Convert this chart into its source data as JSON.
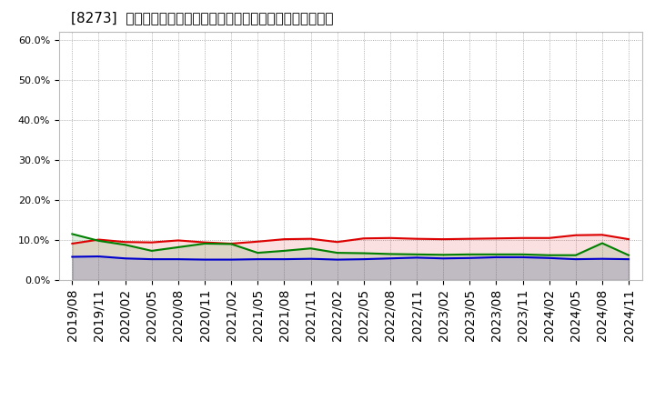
{
  "title": "[8273]  売上債権、在庫、買入債務の総資産に対する比率の推移",
  "ylim": [
    0.0,
    0.62
  ],
  "yticks": [
    0.0,
    0.1,
    0.2,
    0.3,
    0.4,
    0.5,
    0.6
  ],
  "x_labels": [
    "2019/08",
    "2019/11",
    "2020/02",
    "2020/05",
    "2020/08",
    "2020/11",
    "2021/02",
    "2021/05",
    "2021/08",
    "2021/11",
    "2022/02",
    "2022/05",
    "2022/08",
    "2022/11",
    "2023/02",
    "2023/05",
    "2023/08",
    "2023/11",
    "2024/02",
    "2024/05",
    "2024/08",
    "2024/11"
  ],
  "series_order": [
    "売上債権",
    "在庫",
    "買入債務"
  ],
  "series": {
    "売上債権": {
      "color": "#dd0000",
      "values": [
        0.091,
        0.101,
        0.095,
        0.094,
        0.099,
        0.094,
        0.091,
        0.096,
        0.102,
        0.103,
        0.095,
        0.104,
        0.105,
        0.103,
        0.102,
        0.103,
        0.104,
        0.105,
        0.105,
        0.112,
        0.113,
        0.102
      ]
    },
    "在庫": {
      "color": "#0000cc",
      "values": [
        0.058,
        0.059,
        0.054,
        0.052,
        0.052,
        0.051,
        0.051,
        0.052,
        0.052,
        0.053,
        0.051,
        0.052,
        0.054,
        0.056,
        0.054,
        0.055,
        0.057,
        0.057,
        0.055,
        0.052,
        0.053,
        0.052
      ]
    },
    "買入債務": {
      "color": "#008000",
      "values": [
        0.115,
        0.098,
        0.088,
        0.073,
        0.082,
        0.091,
        0.09,
        0.068,
        0.073,
        0.079,
        0.068,
        0.067,
        0.065,
        0.064,
        0.063,
        0.064,
        0.064,
        0.064,
        0.062,
        0.062,
        0.092,
        0.062
      ]
    }
  },
  "background_color": "#ffffff",
  "grid_color": "#999999",
  "title_fontsize": 11,
  "legend_fontsize": 9,
  "line_width": 1.5
}
